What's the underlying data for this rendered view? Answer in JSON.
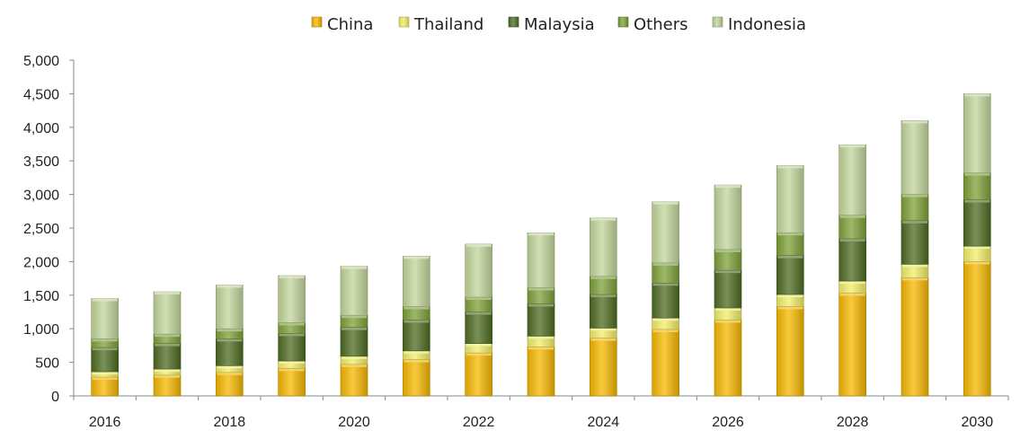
{
  "chart_data": {
    "type": "bar",
    "stacked": true,
    "x": [
      2016,
      2017,
      2018,
      2019,
      2020,
      2021,
      2022,
      2023,
      2024,
      2025,
      2026,
      2027,
      2028,
      2029,
      2030
    ],
    "x_tick_labels": [
      "2016",
      "2018",
      "2020",
      "2022",
      "2024",
      "2026",
      "2028",
      "2030"
    ],
    "y_tick_labels": [
      "0",
      "500",
      "1,000",
      "1,500",
      "2,000",
      "2,500",
      "3,000",
      "3,500",
      "4,000",
      "4,500",
      "5,000"
    ],
    "ylim": [
      0,
      5000
    ],
    "legend_position": "top",
    "grid": false,
    "series": [
      {
        "name": "China",
        "color": "#F5B800",
        "values": [
          280,
          310,
          350,
          410,
          470,
          540,
          640,
          730,
          860,
          990,
          1130,
          1330,
          1530,
          1760,
          2000
        ]
      },
      {
        "name": "Thailand",
        "color": "#F2EE6A",
        "values": [
          80,
          90,
          100,
          110,
          120,
          130,
          140,
          160,
          150,
          170,
          180,
          180,
          180,
          200,
          230
        ]
      },
      {
        "name": "Malaysia",
        "color": "#4D6B22",
        "values": [
          360,
          380,
          400,
          410,
          430,
          460,
          470,
          480,
          500,
          520,
          560,
          580,
          630,
          650,
          690
        ]
      },
      {
        "name": "Others",
        "color": "#7EA03A",
        "values": [
          130,
          140,
          150,
          160,
          180,
          200,
          220,
          240,
          270,
          300,
          310,
          340,
          350,
          390,
          400
        ]
      },
      {
        "name": "Indonesia",
        "color": "#C2D69B",
        "values": [
          600,
          630,
          650,
          700,
          730,
          750,
          790,
          820,
          870,
          910,
          960,
          1000,
          1050,
          1100,
          1180
        ]
      }
    ]
  }
}
